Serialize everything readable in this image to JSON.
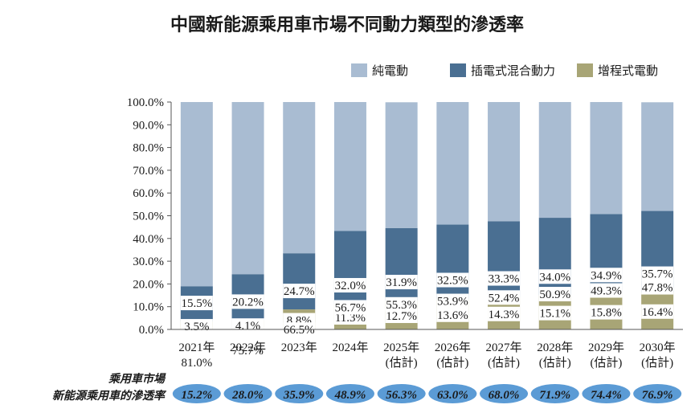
{
  "chart_data": {
    "type": "bar",
    "stacked": true,
    "title": "中國新能源乘用車市場不同動力類型的滲透率",
    "categories": [
      [
        "2021年"
      ],
      [
        "2022年"
      ],
      [
        "2023年"
      ],
      [
        "2024年"
      ],
      [
        "2025年",
        "(估計)"
      ],
      [
        "2026年",
        "(估計)"
      ],
      [
        "2027年",
        "(估計)"
      ],
      [
        "2028年",
        "(估計)"
      ],
      [
        "2029年",
        "(估計)"
      ],
      [
        "2030年",
        "(估計)"
      ]
    ],
    "series": [
      {
        "name": "增程式電動",
        "color": "#a8a576",
        "values": [
          3.5,
          4.1,
          8.8,
          11.3,
          12.7,
          13.6,
          14.3,
          15.1,
          15.8,
          16.4
        ]
      },
      {
        "name": "插電式混合動力",
        "color": "#4a6f92",
        "values": [
          15.5,
          20.2,
          24.7,
          32.0,
          31.9,
          32.5,
          33.3,
          34.0,
          34.9,
          35.7
        ]
      },
      {
        "name": "純電動",
        "color": "#a9bcd2",
        "values": [
          81.0,
          75.7,
          66.5,
          56.7,
          55.3,
          53.9,
          52.4,
          50.9,
          49.3,
          47.8
        ]
      }
    ],
    "legend_order": [
      "純電動",
      "插電式混合動力",
      "增程式電動"
    ],
    "legend_position": "top-right",
    "ylim": [
      0,
      100
    ],
    "yticks": [
      "0.0%",
      "10.0%",
      "20.0%",
      "30.0%",
      "40.0%",
      "50.0%",
      "60.0%",
      "70.0%",
      "80.0%",
      "90.0%",
      "100.0%"
    ],
    "grid": false,
    "penetration": {
      "label_lines": [
        "乘用車市場",
        "新能源乘用車的滲透率"
      ],
      "color": "#5b9bd5",
      "values": [
        "15.2%",
        "28.0%",
        "35.9%",
        "48.9%",
        "56.3%",
        "63.0%",
        "68.0%",
        "71.9%",
        "74.4%",
        "76.9%"
      ]
    }
  }
}
